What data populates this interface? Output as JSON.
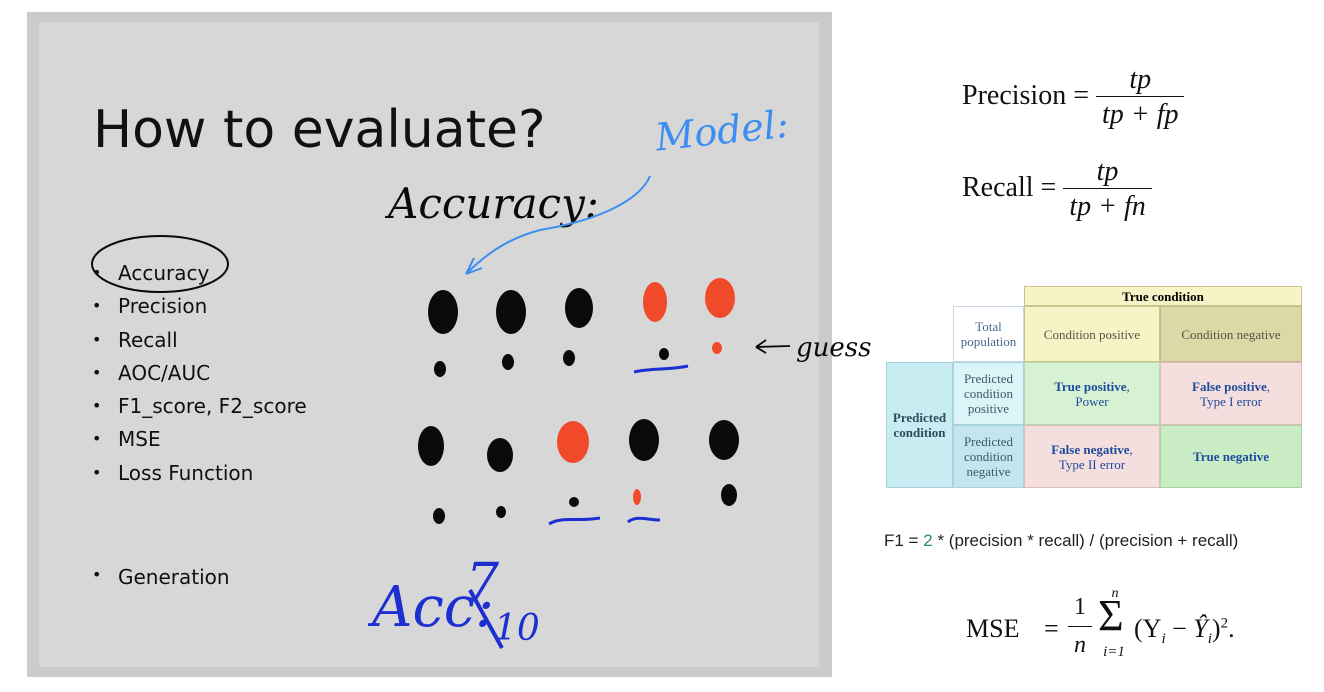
{
  "slide": {
    "title": "How to evaluate?",
    "bullets": [
      "Accuracy",
      "Precision",
      "Recall",
      "AOC/AUC",
      "F1_score, F2_score",
      "MSE",
      "Loss Function"
    ],
    "bullet_extra": "Generation"
  },
  "handwriting": {
    "model_label": "Model:",
    "accuracy_label": "Accuracy:",
    "guess_label": "guess",
    "acc_label": "Acc:",
    "acc_num": "7",
    "acc_den": "10"
  },
  "colors": {
    "ink_black": "#0a0a0a",
    "ink_red": "#f04a2a",
    "ink_blue": "#1c2fd0",
    "ink_lightblue": "#3d8ef0"
  },
  "precision_formula": {
    "label": "Precision",
    "num": "tp",
    "den": "tp + fp"
  },
  "recall_formula": {
    "label": "Recall",
    "num": "tp",
    "den": "tp + fn"
  },
  "confusion_matrix": {
    "true_condition": "True condition",
    "total_population": "Total population",
    "condition_positive": "Condition positive",
    "condition_negative": "Condition negative",
    "predicted_condition": "Predicted condition",
    "predicted_positive": "Predicted condition positive",
    "predicted_negative": "Predicted condition negative",
    "tp_main": "True positive",
    "tp_sub": "Power",
    "fp_main": "False positive",
    "fp_sub": "Type I error",
    "fn_main": "False negative",
    "fn_sub": "Type II error",
    "tn_main": "True negative"
  },
  "f1_formula": {
    "prefix": "F1 =",
    "two": "2",
    "rest": "* (precision * recall) / (precision + recall)"
  },
  "mse_formula": {
    "label": "MSE",
    "one": "1",
    "n": "n",
    "sum_top": "n",
    "sum_bottom": "i=1",
    "body": "(Y",
    "sub_i": "i",
    "minus": "−",
    "yhat": "Ŷ",
    "close": ")",
    "sup": "2",
    "end": "."
  }
}
